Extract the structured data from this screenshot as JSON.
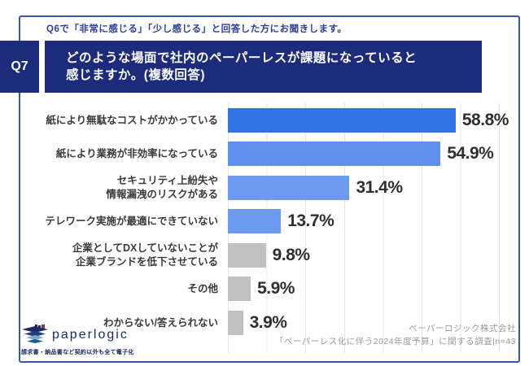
{
  "note": {
    "text": "Q6で「非常に感じる」「少し感じる」と回答した方にお聞きします。"
  },
  "header": {
    "badge": "Q7",
    "question_line1": "どのような場面で社内のペーパーレスが課題になっていると",
    "question_line2": "感じますか。(複数回答)"
  },
  "chart_data": {
    "type": "bar",
    "orientation": "horizontal",
    "title": "どのような場面で社内のペーパーレスが課題になっていると感じますか。(複数回答)",
    "categories": [
      "紙により無駄なコストがかかっている",
      "紙により業務が非効率になっている",
      "セキュリティ上紛失や\n情報漏洩のリスクがある",
      "テレワーク実施が最適にできていない",
      "企業としてDXしていないことが\n企業ブランドを低下させている",
      "その他",
      "わからない/答えられない"
    ],
    "values": [
      58.8,
      54.9,
      31.4,
      13.7,
      9.8,
      5.9,
      3.9
    ],
    "value_labels": [
      "58.8%",
      "54.9%",
      "31.4%",
      "13.7%",
      "9.8%",
      "5.9%",
      "3.9%"
    ],
    "bar_colors": [
      "#3273e3",
      "#5f8fef",
      "#6d99f1",
      "#6d99f1",
      "#c0c0c0",
      "#c0c0c0",
      "#c0c0c0"
    ],
    "xlim": [
      0,
      70
    ],
    "gridline_interval_pct": 10,
    "grid": true,
    "legend": false
  },
  "footer": {
    "logo_text": "paperlogic",
    "logo_tagline": "請求書・納品書など契約以外も全て電子化",
    "source_line1": "ペーパーロジック株式会社",
    "source_line2": "「ペーパーレス化に伴う2024年度予算」に関する調査|n=43"
  },
  "colors": {
    "header_navy": "#1d2b7d",
    "frame_blue": "#3a57a7",
    "note_blue": "#2d3f96",
    "gridline": "#e5e5e5",
    "value_text": "#2f2f2f",
    "source_text": "#9b9b9b"
  }
}
